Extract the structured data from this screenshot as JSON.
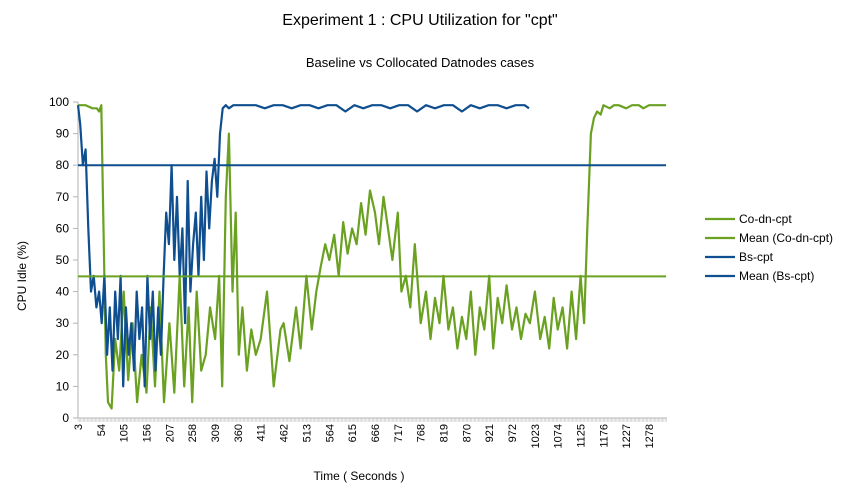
{
  "chart_data": {
    "type": "line",
    "title": "Experiment 1 : CPU Utilization for \"cpt\"",
    "subtitle": "Baseline vs Collocated Datnodes cases",
    "xlabel": "Time ( Seconds )",
    "ylabel": "CPU Idle (%)",
    "ylim": [
      0,
      100
    ],
    "yticks": [
      0,
      10,
      20,
      30,
      40,
      50,
      60,
      70,
      80,
      90,
      100
    ],
    "xlim": [
      3,
      1318
    ],
    "xticks": [
      "3",
      "54",
      "105",
      "156",
      "207",
      "258",
      "309",
      "360",
      "411",
      "462",
      "513",
      "564",
      "615",
      "666",
      "717",
      "768",
      "819",
      "870",
      "921",
      "972",
      "1023",
      "1074",
      "1125",
      "1176",
      "1227",
      "1278"
    ],
    "grid": false,
    "legend_position": "right",
    "series": [
      {
        "name": "Co-dn-cpt",
        "color": "#6aa121",
        "x": [
          3,
          20,
          35,
          45,
          50,
          55,
          60,
          65,
          70,
          78,
          86,
          95,
          105,
          115,
          125,
          135,
          145,
          156,
          165,
          175,
          185,
          195,
          207,
          218,
          230,
          240,
          250,
          258,
          268,
          278,
          288,
          298,
          309,
          318,
          325,
          333,
          340,
          348,
          355,
          362,
          370,
          380,
          390,
          400,
          411,
          425,
          440,
          455,
          462,
          475,
          490,
          500,
          513,
          525,
          535,
          545,
          555,
          564,
          575,
          585,
          595,
          605,
          615,
          625,
          635,
          645,
          655,
          666,
          675,
          685,
          695,
          705,
          717,
          725,
          735,
          745,
          755,
          768,
          780,
          790,
          800,
          810,
          819,
          830,
          840,
          850,
          860,
          870,
          880,
          890,
          900,
          910,
          921,
          930,
          940,
          950,
          960,
          972,
          982,
          992,
          1002,
          1012,
          1023,
          1035,
          1045,
          1055,
          1065,
          1074,
          1085,
          1095,
          1105,
          1115,
          1125,
          1133,
          1140,
          1148,
          1155,
          1162,
          1170,
          1176,
          1190,
          1200,
          1210,
          1227,
          1240,
          1255,
          1265,
          1278,
          1295,
          1310,
          1316
        ],
        "y": [
          99,
          99,
          98,
          98,
          97,
          99,
          60,
          20,
          5,
          3,
          25,
          15,
          40,
          12,
          30,
          5,
          20,
          8,
          35,
          10,
          40,
          5,
          30,
          8,
          45,
          10,
          35,
          5,
          40,
          15,
          20,
          35,
          25,
          45,
          10,
          70,
          90,
          40,
          65,
          20,
          35,
          15,
          28,
          20,
          25,
          40,
          10,
          28,
          30,
          18,
          35,
          22,
          45,
          28,
          40,
          48,
          55,
          50,
          58,
          45,
          62,
          52,
          60,
          55,
          68,
          58,
          72,
          65,
          55,
          70,
          60,
          50,
          65,
          40,
          45,
          35,
          55,
          30,
          40,
          25,
          38,
          30,
          45,
          28,
          35,
          22,
          32,
          25,
          40,
          20,
          35,
          28,
          45,
          22,
          38,
          30,
          42,
          28,
          35,
          25,
          33,
          30,
          40,
          25,
          32,
          22,
          38,
          28,
          35,
          22,
          40,
          25,
          45,
          30,
          60,
          90,
          95,
          97,
          96,
          99,
          98,
          99,
          99,
          98,
          99,
          99,
          98,
          99,
          99,
          99,
          99
        ]
      },
      {
        "name": "Mean (Co-dn-cpt)",
        "color": "#6aa121",
        "x": [
          3,
          1316
        ],
        "y": [
          44.8,
          44.8
        ]
      },
      {
        "name": "Bs-cpt",
        "color": "#0f4f8f",
        "x": [
          3,
          8,
          14,
          20,
          26,
          32,
          38,
          44,
          50,
          56,
          62,
          68,
          74,
          80,
          86,
          92,
          98,
          104,
          110,
          116,
          122,
          128,
          134,
          140,
          146,
          152,
          158,
          164,
          170,
          176,
          182,
          188,
          194,
          200,
          206,
          212,
          218,
          224,
          230,
          236,
          242,
          248,
          254,
          260,
          266,
          272,
          278,
          284,
          290,
          296,
          302,
          308,
          314,
          320,
          326,
          333,
          340,
          350,
          360,
          380,
          400,
          420,
          440,
          460,
          480,
          500,
          520,
          540,
          560,
          580,
          600,
          620,
          640,
          660,
          680,
          700,
          720,
          740,
          760,
          780,
          800,
          820,
          840,
          860,
          880,
          900,
          920,
          940,
          960,
          980,
          1000,
          1010
        ],
        "y": [
          99,
          93,
          80,
          85,
          60,
          40,
          45,
          35,
          40,
          30,
          45,
          20,
          35,
          15,
          40,
          25,
          45,
          10,
          35,
          20,
          30,
          15,
          40,
          25,
          35,
          10,
          45,
          25,
          40,
          15,
          35,
          20,
          45,
          65,
          55,
          80,
          50,
          70,
          45,
          60,
          30,
          75,
          40,
          55,
          65,
          45,
          70,
          50,
          78,
          60,
          75,
          82,
          70,
          90,
          98,
          99,
          98,
          99,
          99,
          99,
          99,
          98,
          99,
          99,
          98,
          99,
          99,
          98,
          99,
          99,
          97,
          99,
          98,
          99,
          99,
          98,
          99,
          99,
          97,
          99,
          98,
          99,
          99,
          97,
          99,
          98,
          99,
          99,
          98,
          99,
          99,
          98
        ]
      },
      {
        "name": "Mean (Bs-cpt)",
        "color": "#0f4f8f",
        "x": [
          3,
          1316
        ],
        "y": [
          80,
          80
        ]
      }
    ]
  }
}
